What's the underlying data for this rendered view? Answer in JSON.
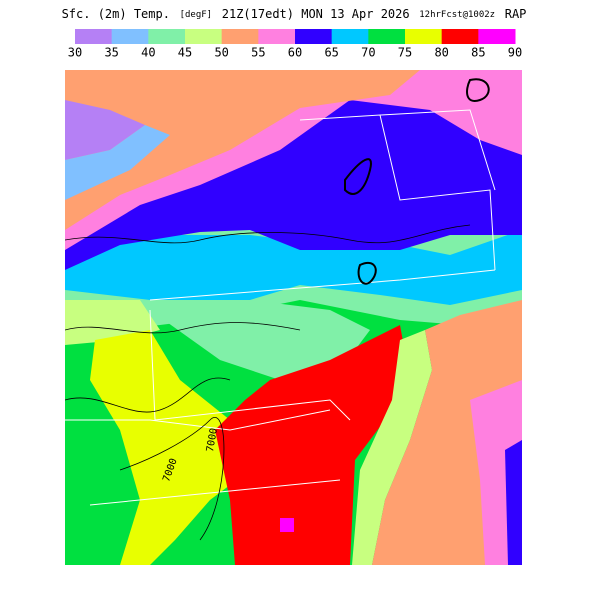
{
  "header": {
    "title_parts": [
      "Sfc. (2m) Temp.",
      "[degF]",
      "21Z(17edt) MON 13 Apr 2026",
      "12hrFcst@1002z",
      "RAP"
    ]
  },
  "colorbar": {
    "values": [
      30,
      35,
      40,
      45,
      50,
      55,
      60,
      65,
      70,
      75,
      80,
      85,
      90
    ],
    "colors": [
      "#b580f5",
      "#80c0ff",
      "#80f0a8",
      "#c8ff80",
      "#ffa070",
      "#ff80e0",
      "#3000ff",
      "#00c8ff",
      "#00e040",
      "#e8ff00",
      "#ff0000",
      "#ff00ff"
    ]
  },
  "map": {
    "contour_labels": [
      "7000",
      "7000"
    ]
  }
}
